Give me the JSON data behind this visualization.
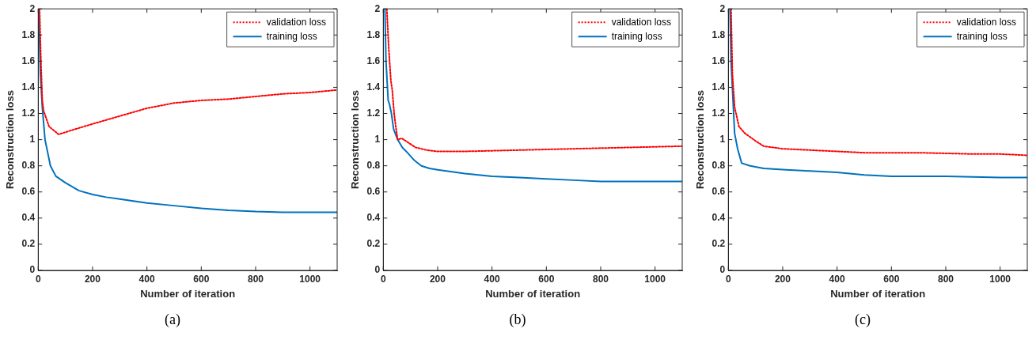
{
  "chart_data": [
    {
      "type": "line",
      "xlabel": "Number of iteration",
      "ylabel": "Reconstruction loss",
      "xlim": [
        0,
        1100
      ],
      "xticks": [
        0,
        200,
        400,
        600,
        800,
        1000
      ],
      "ylim": [
        0,
        2
      ],
      "yticks": [
        0,
        0.2,
        0.4,
        0.6,
        0.8,
        1,
        1.2,
        1.4,
        1.6,
        1.8,
        2
      ],
      "grid": false,
      "legend": "top right",
      "marker": "none",
      "annotations": [
        "(a)"
      ],
      "series": [
        {
          "name": "validation loss",
          "color": "#ff0000",
          "line_style": "dotted",
          "x": [
            5,
            10,
            15,
            20,
            40,
            75,
            120,
            200,
            300,
            400,
            500,
            600,
            700,
            800,
            900,
            1000,
            1100
          ],
          "values": [
            2,
            1.6,
            1.3,
            1.22,
            1.1,
            1.04,
            1.07,
            1.12,
            1.18,
            1.24,
            1.28,
            1.3,
            1.31,
            1.33,
            1.35,
            1.36,
            1.38
          ]
        },
        {
          "name": "training loss",
          "color": "#0072bd",
          "line_style": "solid",
          "x": [
            2,
            8,
            15,
            25,
            45,
            65,
            100,
            150,
            200,
            250,
            300,
            400,
            500,
            600,
            700,
            800,
            900,
            1000,
            1100
          ],
          "values": [
            2,
            1.5,
            1.25,
            1.0,
            0.8,
            0.72,
            0.67,
            0.61,
            0.58,
            0.56,
            0.545,
            0.515,
            0.495,
            0.475,
            0.46,
            0.45,
            0.445,
            0.445,
            0.445
          ]
        }
      ]
    },
    {
      "type": "line",
      "xlabel": "Number of iteration",
      "ylabel": "Reconstruction loss",
      "xlim": [
        0,
        1100
      ],
      "xticks": [
        0,
        200,
        400,
        600,
        800,
        1000
      ],
      "ylim": [
        0,
        2
      ],
      "yticks": [
        0,
        0.2,
        0.4,
        0.6,
        0.8,
        1,
        1.2,
        1.4,
        1.6,
        1.8,
        2
      ],
      "grid": false,
      "legend": "top right",
      "marker": "none",
      "annotations": [
        "(b)"
      ],
      "series": [
        {
          "name": "validation loss",
          "color": "#ff0000",
          "line_style": "dotted",
          "x": [
            13,
            20,
            28,
            33,
            40,
            46,
            53,
            68,
            90,
            119,
            160,
            200,
            300,
            400,
            500,
            600,
            700,
            800,
            900,
            1000,
            1100
          ],
          "values": [
            2,
            1.7,
            1.45,
            1.38,
            1.2,
            1.1,
            1.0,
            1.01,
            0.98,
            0.94,
            0.92,
            0.91,
            0.91,
            0.915,
            0.92,
            0.925,
            0.93,
            0.935,
            0.94,
            0.945,
            0.95
          ]
        },
        {
          "name": "training loss",
          "color": "#0072bd",
          "line_style": "solid",
          "x": [
            6,
            10,
            18,
            23,
            30,
            38,
            53,
            70,
            89,
            115,
            140,
            170,
            200,
            300,
            400,
            500,
            600,
            700,
            800,
            900,
            1000,
            1100
          ],
          "values": [
            2,
            1.6,
            1.3,
            1.27,
            1.2,
            1.08,
            1.0,
            0.94,
            0.9,
            0.84,
            0.8,
            0.78,
            0.77,
            0.74,
            0.72,
            0.71,
            0.7,
            0.69,
            0.68,
            0.68,
            0.68,
            0.68
          ]
        }
      ]
    },
    {
      "type": "line",
      "xlabel": "Number of iteration",
      "ylabel": "Reconstruction loss",
      "xlim": [
        0,
        1100
      ],
      "xticks": [
        0,
        200,
        400,
        600,
        800,
        1000
      ],
      "ylim": [
        0,
        2
      ],
      "yticks": [
        0,
        0.2,
        0.4,
        0.6,
        0.8,
        1,
        1.2,
        1.4,
        1.6,
        1.8,
        2
      ],
      "grid": false,
      "legend": "top right",
      "marker": "none",
      "annotations": [
        "(c)"
      ],
      "series": [
        {
          "name": "validation loss",
          "color": "#ff0000",
          "line_style": "dotted",
          "x": [
            10,
            15,
            23,
            39,
            60,
            80,
            100,
            130,
            200,
            300,
            400,
            500,
            600,
            700,
            800,
            900,
            1000,
            1100
          ],
          "values": [
            2,
            1.5,
            1.25,
            1.1,
            1.05,
            1.02,
            0.99,
            0.95,
            0.93,
            0.92,
            0.91,
            0.9,
            0.9,
            0.9,
            0.895,
            0.89,
            0.89,
            0.88
          ]
        },
        {
          "name": "training loss",
          "color": "#0072bd",
          "line_style": "solid",
          "x": [
            6,
            10,
            16,
            23,
            34,
            49,
            80,
            130,
            212,
            300,
            400,
            500,
            600,
            700,
            800,
            900,
            1000,
            1100
          ],
          "values": [
            2,
            1.6,
            1.35,
            1.05,
            0.93,
            0.82,
            0.8,
            0.78,
            0.77,
            0.76,
            0.75,
            0.73,
            0.72,
            0.72,
            0.72,
            0.715,
            0.71,
            0.71
          ]
        }
      ]
    }
  ]
}
